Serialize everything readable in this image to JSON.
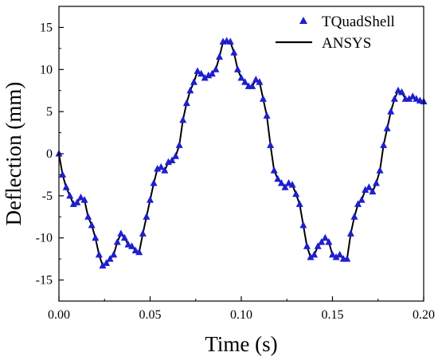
{
  "chart_data": {
    "type": "line",
    "title": "",
    "xlabel": "Time (s)",
    "ylabel": "Deflection (mm)",
    "xlim": [
      0,
      0.2
    ],
    "ylim": [
      -17.5,
      17.5
    ],
    "xticks": [
      "0.00",
      "0.05",
      "0.10",
      "0.15",
      "0.20"
    ],
    "xtick_values": [
      0,
      0.05,
      0.1,
      0.15,
      0.2
    ],
    "yticks": [
      "-15",
      "-10",
      "-5",
      "0",
      "5",
      "10",
      "15"
    ],
    "ytick_values": [
      -15,
      -10,
      -5,
      0,
      5,
      10,
      15
    ],
    "grid": false,
    "legend_position": "top-right",
    "series": [
      {
        "name": "TQuadShell",
        "style": "markers",
        "marker": "triangle",
        "color": "#1e1ed0",
        "x": [
          0.0,
          0.002,
          0.004,
          0.006,
          0.008,
          0.01,
          0.012,
          0.014,
          0.016,
          0.018,
          0.02,
          0.022,
          0.024,
          0.026,
          0.028,
          0.03,
          0.032,
          0.034,
          0.036,
          0.038,
          0.04,
          0.042,
          0.044,
          0.046,
          0.048,
          0.05,
          0.052,
          0.054,
          0.056,
          0.058,
          0.06,
          0.062,
          0.064,
          0.066,
          0.068,
          0.07,
          0.072,
          0.074,
          0.076,
          0.078,
          0.08,
          0.082,
          0.084,
          0.086,
          0.088,
          0.09,
          0.092,
          0.094,
          0.096,
          0.098,
          0.1,
          0.102,
          0.104,
          0.106,
          0.108,
          0.11,
          0.112,
          0.114,
          0.116,
          0.118,
          0.12,
          0.122,
          0.124,
          0.126,
          0.128,
          0.13,
          0.132,
          0.134,
          0.136,
          0.138,
          0.14,
          0.142,
          0.144,
          0.146,
          0.148,
          0.15,
          0.152,
          0.154,
          0.156,
          0.158,
          0.16,
          0.162,
          0.164,
          0.166,
          0.168,
          0.17,
          0.172,
          0.174,
          0.176,
          0.178,
          0.18,
          0.182,
          0.184,
          0.186,
          0.188,
          0.19,
          0.192,
          0.194,
          0.196,
          0.198,
          0.2
        ],
        "values": [
          0.0,
          -2.5,
          -4.0,
          -5.0,
          -6.0,
          -5.8,
          -5.2,
          -5.5,
          -7.5,
          -8.5,
          -10.0,
          -12.0,
          -13.3,
          -13.0,
          -12.5,
          -12.0,
          -10.5,
          -9.5,
          -10.0,
          -10.8,
          -11.0,
          -11.5,
          -11.7,
          -9.5,
          -7.5,
          -5.5,
          -3.5,
          -1.8,
          -1.6,
          -2.0,
          -1.0,
          -0.8,
          -0.3,
          1.0,
          4.0,
          6.0,
          7.5,
          8.5,
          9.8,
          9.5,
          9.0,
          9.3,
          9.5,
          10.0,
          11.5,
          13.3,
          13.4,
          13.3,
          12.0,
          10.0,
          9.0,
          8.5,
          8.0,
          8.0,
          8.8,
          8.5,
          6.5,
          4.5,
          1.0,
          -2.0,
          -3.0,
          -3.5,
          -4.0,
          -3.5,
          -3.7,
          -4.8,
          -6.0,
          -8.5,
          -11.0,
          -12.3,
          -12.0,
          -11.0,
          -10.5,
          -10.0,
          -10.5,
          -12.0,
          -12.3,
          -12.0,
          -12.5,
          -12.5,
          -9.5,
          -7.5,
          -6.0,
          -5.5,
          -4.3,
          -4.0,
          -4.5,
          -3.5,
          -2.0,
          1.0,
          3.0,
          5.0,
          6.5,
          7.5,
          7.3,
          6.5,
          6.5,
          6.8,
          6.5,
          6.3,
          6.2
        ]
      },
      {
        "name": "ANSYS",
        "style": "line",
        "color": "#000000",
        "x": [
          0.0,
          0.002,
          0.004,
          0.006,
          0.008,
          0.01,
          0.012,
          0.014,
          0.016,
          0.018,
          0.02,
          0.022,
          0.024,
          0.026,
          0.028,
          0.03,
          0.032,
          0.034,
          0.036,
          0.038,
          0.04,
          0.042,
          0.044,
          0.046,
          0.048,
          0.05,
          0.052,
          0.054,
          0.056,
          0.058,
          0.06,
          0.062,
          0.064,
          0.066,
          0.068,
          0.07,
          0.072,
          0.074,
          0.076,
          0.078,
          0.08,
          0.082,
          0.084,
          0.086,
          0.088,
          0.09,
          0.092,
          0.094,
          0.096,
          0.098,
          0.1,
          0.102,
          0.104,
          0.106,
          0.108,
          0.11,
          0.112,
          0.114,
          0.116,
          0.118,
          0.12,
          0.122,
          0.124,
          0.126,
          0.128,
          0.13,
          0.132,
          0.134,
          0.136,
          0.138,
          0.14,
          0.142,
          0.144,
          0.146,
          0.148,
          0.15,
          0.152,
          0.154,
          0.156,
          0.158,
          0.16,
          0.162,
          0.164,
          0.166,
          0.168,
          0.17,
          0.172,
          0.174,
          0.176,
          0.178,
          0.18,
          0.182,
          0.184,
          0.186,
          0.188,
          0.19,
          0.192,
          0.194,
          0.196,
          0.198,
          0.2
        ],
        "values": [
          0.0,
          -2.5,
          -4.0,
          -5.0,
          -6.0,
          -5.8,
          -5.2,
          -5.5,
          -7.5,
          -8.5,
          -10.0,
          -12.0,
          -13.3,
          -13.0,
          -12.5,
          -12.0,
          -10.5,
          -9.5,
          -10.0,
          -10.8,
          -11.0,
          -11.5,
          -11.7,
          -9.5,
          -7.5,
          -5.5,
          -3.5,
          -1.8,
          -1.6,
          -2.0,
          -1.0,
          -0.8,
          -0.3,
          1.0,
          4.0,
          6.0,
          7.5,
          8.5,
          9.8,
          9.5,
          9.0,
          9.3,
          9.5,
          10.0,
          11.5,
          13.3,
          13.4,
          13.3,
          12.0,
          10.0,
          9.0,
          8.5,
          8.0,
          8.0,
          8.8,
          8.5,
          6.5,
          4.5,
          1.0,
          -2.0,
          -3.0,
          -3.5,
          -4.0,
          -3.5,
          -3.7,
          -4.8,
          -6.0,
          -8.5,
          -11.0,
          -12.3,
          -12.0,
          -11.0,
          -10.5,
          -10.0,
          -10.5,
          -12.0,
          -12.3,
          -12.0,
          -12.5,
          -12.5,
          -9.5,
          -7.5,
          -6.0,
          -5.5,
          -4.3,
          -4.0,
          -4.5,
          -3.5,
          -2.0,
          1.0,
          3.0,
          5.0,
          6.5,
          7.5,
          7.3,
          6.5,
          6.5,
          6.8,
          6.5,
          6.3,
          6.2
        ]
      }
    ]
  }
}
